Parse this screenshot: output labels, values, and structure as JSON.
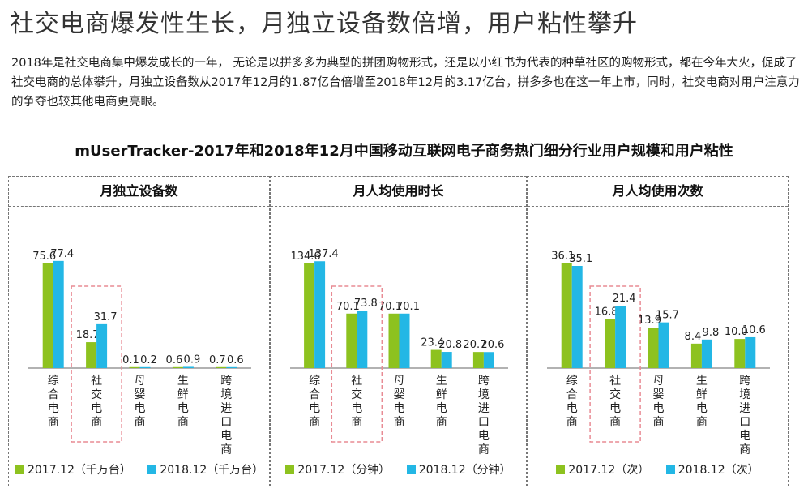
{
  "headline": "社交电商爆发性生长，月独立设备数倍增，用户粘性攀升",
  "intro": "2018年是社交电商集中爆发成长的一年， 无论是以拼多多为典型的拼团购物形式，还是以小红书为代表的种草社区的购物形式，都在今年大火，促成了社交电商的总体攀升，月独立设备数从2017年12月的1.87亿台倍增至2018年12月的3.17亿台，拼多多也在这一年上市，同时，社交电商对用户注意力的争夺也较其他电商更亮眼。",
  "chart_title": "mUserTracker-2017年和2018年12月中国移动互联网电子商务热门细分行业用户规模和用户粘性",
  "colors": {
    "series_2017": "#8dc21f",
    "series_2018": "#23b7e5",
    "highlight_box": "#e88b94",
    "axis": "#666666"
  },
  "chart_data": [
    {
      "type": "bar",
      "title": "月独立设备数",
      "categories": [
        "综合电商",
        "社交电商",
        "母婴电商",
        "生鲜电商",
        "跨境进口电商"
      ],
      "highlight_category": "社交电商",
      "series": [
        {
          "name": "2017.12（千万台）",
          "values": [
            75.6,
            18.7,
            0.1,
            0.6,
            0.7
          ],
          "labels": [
            "75.6",
            "18.7",
            "0.1",
            "0.6",
            "0.7"
          ]
        },
        {
          "name": "2018.12（千万台）",
          "values": [
            77.4,
            31.7,
            0.2,
            0.9,
            0.6
          ],
          "labels": [
            "77.4",
            "31.7",
            "0.2",
            "0.9",
            "0.6"
          ]
        }
      ],
      "ylim": [
        0,
        82
      ]
    },
    {
      "type": "bar",
      "title": "月人均使用时长",
      "categories": [
        "综合电商",
        "社交电商",
        "母婴电商",
        "生鲜电商",
        "跨境进口电商"
      ],
      "highlight_category": "社交电商",
      "series": [
        {
          "name": "2017.12（分钟）",
          "values": [
            134.6,
            70.1,
            70.1,
            23.4,
            20.7
          ],
          "labels": [
            "134.6",
            "70.1",
            "70.1",
            "23.4",
            "20.7"
          ]
        },
        {
          "name": "2018.12（分钟）",
          "values": [
            137.4,
            73.8,
            70.1,
            20.8,
            20.6
          ],
          "labels": [
            "137.4",
            "73.8",
            "70.1",
            "20.8",
            "20.6"
          ]
        }
      ],
      "ylim": [
        0,
        146
      ]
    },
    {
      "type": "bar",
      "title": "月人均使用次数",
      "categories": [
        "综合电商",
        "社交电商",
        "母婴电商",
        "生鲜电商",
        "跨境进口电商"
      ],
      "highlight_category": "社交电商",
      "series": [
        {
          "name": "2017.12（次）",
          "values": [
            36.1,
            16.8,
            13.9,
            8.4,
            10.0
          ],
          "labels": [
            "36.1",
            "16.8",
            "13.9",
            "8.4",
            "10.0"
          ]
        },
        {
          "name": "2018.12（次）",
          "values": [
            35.1,
            21.4,
            15.7,
            9.8,
            10.6
          ],
          "labels": [
            "35.1",
            "21.4",
            "15.7",
            "9.8",
            "10.6"
          ]
        }
      ],
      "ylim": [
        0,
        39
      ]
    }
  ]
}
